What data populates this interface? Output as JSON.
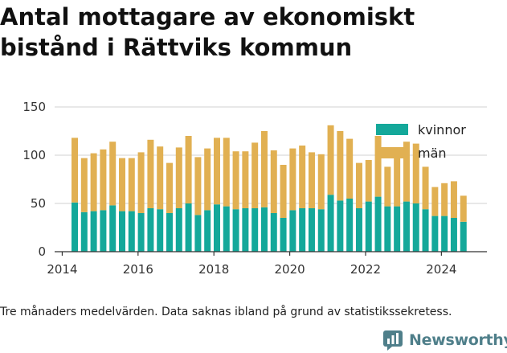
{
  "title": "Antal mottagare av ekonomiskt bistånd i Rättviks kommun",
  "footnote": "Tre månaders medelvärden. Data saknas ibland på grund av statistikssekretess.",
  "brand": "Newsworthy",
  "colors": {
    "kvinnor": "#14a89a",
    "man": "#e1b052",
    "axis": "#333333",
    "grid": "#d0d0d0",
    "brand": "#4f7f8a"
  },
  "icons": {
    "brand_logo": "newsworthy-logo-icon"
  },
  "chart_data": {
    "type": "bar",
    "stacked": true,
    "title": "Antal mottagare av ekonomiskt bistånd i Rättviks kommun",
    "xlabel": "",
    "ylabel": "",
    "ylim": [
      0,
      150
    ],
    "xlim": [
      2013.8,
      2025.2
    ],
    "yticks": [
      0,
      50,
      100,
      150
    ],
    "xticks": [
      2014,
      2016,
      2018,
      2020,
      2022,
      2024
    ],
    "xtick_labels": [
      "2014",
      "2016",
      "2018",
      "2020",
      "2022",
      "2024"
    ],
    "grid": true,
    "legend_position": "top-right",
    "x": [
      2014.33,
      2014.58,
      2014.83,
      2015.08,
      2015.33,
      2015.58,
      2015.83,
      2016.08,
      2016.33,
      2016.58,
      2016.83,
      2017.08,
      2017.33,
      2017.58,
      2017.83,
      2018.08,
      2018.33,
      2018.58,
      2018.83,
      2019.08,
      2019.33,
      2019.58,
      2019.83,
      2020.08,
      2020.33,
      2020.58,
      2020.83,
      2021.08,
      2021.33,
      2021.58,
      2021.83,
      2022.08,
      2022.33,
      2022.58,
      2022.83,
      2023.08,
      2023.33,
      2023.58,
      2023.83,
      2024.08,
      2024.33,
      2024.58
    ],
    "series": [
      {
        "name": "kvinnor",
        "values": [
          51,
          41,
          42,
          43,
          48,
          42,
          42,
          40,
          45,
          44,
          40,
          45,
          50,
          38,
          43,
          49,
          47,
          44,
          45,
          45,
          46,
          40,
          35,
          43,
          45,
          45,
          44,
          59,
          53,
          55,
          45,
          52,
          57,
          47,
          47,
          52,
          50,
          44,
          37,
          37,
          35,
          31
        ]
      },
      {
        "name": "män",
        "values": [
          67,
          56,
          60,
          63,
          66,
          55,
          55,
          63,
          71,
          65,
          52,
          63,
          70,
          60,
          64,
          69,
          71,
          60,
          59,
          68,
          79,
          65,
          55,
          64,
          65,
          58,
          57,
          72,
          72,
          62,
          47,
          43,
          63,
          41,
          50,
          62,
          62,
          44,
          30,
          34,
          38,
          27
        ]
      }
    ]
  }
}
